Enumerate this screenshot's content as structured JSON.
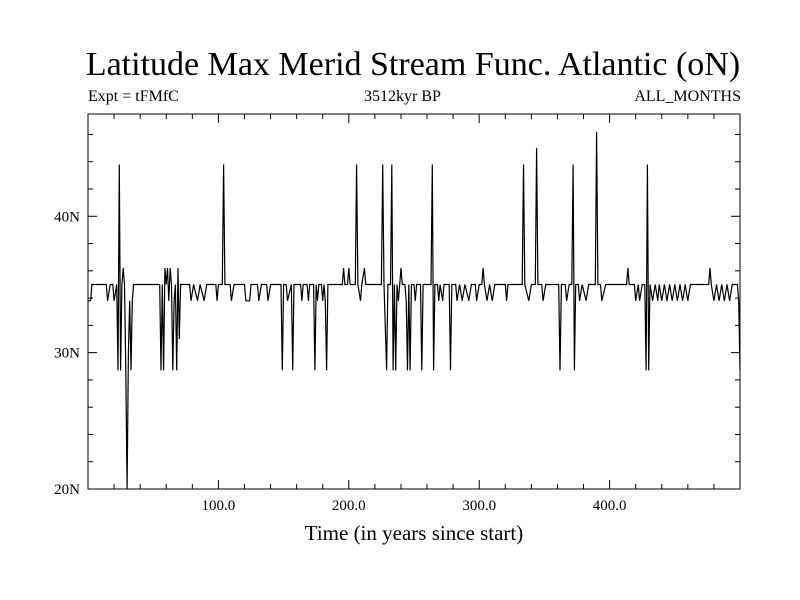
{
  "chart_data": {
    "type": "line",
    "title": "Latitude Max Merid Stream Func. Atlantic (oN)",
    "subtitle_left": "Expt = tFMfC",
    "subtitle_center": "3512kyr BP",
    "subtitle_right": "ALL_MONTHS",
    "xlabel": "Time (in years since start)",
    "ylabel": "",
    "xlim": [
      0,
      500
    ],
    "ylim": [
      20,
      47.5
    ],
    "x_ticks": [
      100,
      200,
      300,
      400
    ],
    "x_tick_labels": [
      "100.0",
      "200.0",
      "300.0",
      "400.0"
    ],
    "y_ticks": [
      20,
      30,
      40
    ],
    "y_tick_labels": [
      "20N",
      "30N",
      "40N"
    ],
    "grid": false,
    "legend": "none",
    "line_color": "#000000",
    "series": [
      {
        "values": [
          [
            0,
            33.8
          ],
          [
            2,
            33.8
          ],
          [
            3,
            35.0
          ],
          [
            14,
            35.0
          ],
          [
            15,
            33.8
          ],
          [
            17,
            35.0
          ],
          [
            19,
            35.0
          ],
          [
            20,
            33.8
          ],
          [
            22,
            35.0
          ],
          [
            23,
            28.7
          ],
          [
            24,
            43.8
          ],
          [
            25,
            28.7
          ],
          [
            26,
            35.0
          ],
          [
            27,
            36.2
          ],
          [
            28,
            35.0
          ],
          [
            29,
            28.7
          ],
          [
            30,
            20.0
          ],
          [
            31,
            30.0
          ],
          [
            32,
            33.8
          ],
          [
            33,
            28.7
          ],
          [
            34,
            33.8
          ],
          [
            35,
            35.0
          ],
          [
            55,
            35.0
          ],
          [
            56,
            28.7
          ],
          [
            57,
            35.0
          ],
          [
            58,
            28.7
          ],
          [
            59,
            36.2
          ],
          [
            60,
            35.0
          ],
          [
            61,
            36.2
          ],
          [
            62,
            33.8
          ],
          [
            63,
            36.2
          ],
          [
            64,
            35.0
          ],
          [
            65,
            28.7
          ],
          [
            66,
            33.8
          ],
          [
            67,
            35.0
          ],
          [
            68,
            28.7
          ],
          [
            69,
            36.2
          ],
          [
            70,
            31.0
          ],
          [
            71,
            35.0
          ],
          [
            78,
            35.0
          ],
          [
            79,
            33.8
          ],
          [
            81,
            35.0
          ],
          [
            84,
            33.8
          ],
          [
            86,
            35.0
          ],
          [
            89,
            33.8
          ],
          [
            91,
            35.0
          ],
          [
            98,
            35.0
          ],
          [
            99,
            33.8
          ],
          [
            100,
            35.0
          ],
          [
            103,
            35.0
          ],
          [
            104,
            43.8
          ],
          [
            105,
            35.0
          ],
          [
            109,
            35.0
          ],
          [
            110,
            33.8
          ],
          [
            112,
            35.0
          ],
          [
            120,
            35.0
          ],
          [
            121,
            33.8
          ],
          [
            124,
            33.8
          ],
          [
            125,
            35.0
          ],
          [
            130,
            35.0
          ],
          [
            131,
            33.8
          ],
          [
            133,
            35.0
          ],
          [
            137,
            35.0
          ],
          [
            138,
            33.8
          ],
          [
            140,
            35.0
          ],
          [
            148,
            35.0
          ],
          [
            149,
            28.7
          ],
          [
            150,
            35.0
          ],
          [
            152,
            35.0
          ],
          [
            153,
            33.8
          ],
          [
            156,
            35.0
          ],
          [
            157,
            28.7
          ],
          [
            158,
            35.0
          ],
          [
            163,
            35.0
          ],
          [
            164,
            33.8
          ],
          [
            165,
            35.0
          ],
          [
            168,
            35.0
          ],
          [
            169,
            33.8
          ],
          [
            170,
            35.0
          ],
          [
            173,
            35.0
          ],
          [
            174,
            28.7
          ],
          [
            175,
            35.0
          ],
          [
            176,
            33.8
          ],
          [
            177,
            35.0
          ],
          [
            179,
            35.0
          ],
          [
            180,
            33.8
          ],
          [
            181,
            35.0
          ],
          [
            182,
            33.8
          ],
          [
            183,
            28.7
          ],
          [
            184,
            35.0
          ],
          [
            195,
            35.0
          ],
          [
            196,
            36.2
          ],
          [
            197,
            35.0
          ],
          [
            199,
            35.0
          ],
          [
            200,
            36.2
          ],
          [
            201,
            35.0
          ],
          [
            205,
            35.0
          ],
          [
            206,
            43.8
          ],
          [
            207,
            35.0
          ],
          [
            209,
            33.8
          ],
          [
            210,
            35.0
          ],
          [
            212,
            36.2
          ],
          [
            213,
            35.0
          ],
          [
            225,
            35.0
          ],
          [
            226,
            43.8
          ],
          [
            227,
            35.0
          ],
          [
            229,
            28.7
          ],
          [
            230,
            35.0
          ],
          [
            232,
            35.0
          ],
          [
            233,
            43.8
          ],
          [
            234,
            28.7
          ],
          [
            235,
            35.0
          ],
          [
            236,
            28.7
          ],
          [
            237,
            35.0
          ],
          [
            238,
            33.8
          ],
          [
            239,
            35.0
          ],
          [
            240,
            36.2
          ],
          [
            241,
            35.0
          ],
          [
            243,
            35.0
          ],
          [
            244,
            33.8
          ],
          [
            245,
            28.7
          ],
          [
            246,
            35.0
          ],
          [
            247,
            28.7
          ],
          [
            248,
            35.0
          ],
          [
            250,
            35.0
          ],
          [
            251,
            33.8
          ],
          [
            252,
            35.0
          ],
          [
            255,
            35.0
          ],
          [
            256,
            28.7
          ],
          [
            257,
            35.0
          ],
          [
            263,
            35.0
          ],
          [
            264,
            43.8
          ],
          [
            265,
            28.7
          ],
          [
            266,
            35.0
          ],
          [
            268,
            35.0
          ],
          [
            269,
            33.8
          ],
          [
            270,
            35.0
          ],
          [
            272,
            33.8
          ],
          [
            273,
            35.0
          ],
          [
            277,
            35.0
          ],
          [
            278,
            28.7
          ],
          [
            279,
            35.0
          ],
          [
            282,
            35.0
          ],
          [
            283,
            33.8
          ],
          [
            285,
            35.0
          ],
          [
            287,
            33.8
          ],
          [
            289,
            35.0
          ],
          [
            292,
            33.8
          ],
          [
            294,
            35.0
          ],
          [
            297,
            35.0
          ],
          [
            298,
            33.8
          ],
          [
            300,
            35.0
          ],
          [
            302,
            35.0
          ],
          [
            303,
            36.2
          ],
          [
            304,
            35.0
          ],
          [
            306,
            33.8
          ],
          [
            308,
            35.0
          ],
          [
            310,
            33.8
          ],
          [
            312,
            35.0
          ],
          [
            320,
            35.0
          ],
          [
            321,
            33.8
          ],
          [
            322,
            35.0
          ],
          [
            333,
            35.0
          ],
          [
            334,
            43.8
          ],
          [
            335,
            35.0
          ],
          [
            338,
            33.8
          ],
          [
            340,
            35.0
          ],
          [
            343,
            35.0
          ],
          [
            344,
            45.0
          ],
          [
            345,
            35.0
          ],
          [
            348,
            35.0
          ],
          [
            349,
            33.8
          ],
          [
            351,
            35.0
          ],
          [
            361,
            35.0
          ],
          [
            362,
            28.7
          ],
          [
            363,
            35.0
          ],
          [
            366,
            35.0
          ],
          [
            367,
            33.8
          ],
          [
            369,
            35.0
          ],
          [
            371,
            35.0
          ],
          [
            372,
            43.8
          ],
          [
            373,
            28.7
          ],
          [
            374,
            35.0
          ],
          [
            376,
            35.0
          ],
          [
            377,
            33.8
          ],
          [
            379,
            35.0
          ],
          [
            382,
            33.8
          ],
          [
            384,
            35.0
          ],
          [
            389,
            35.0
          ],
          [
            390,
            46.2
          ],
          [
            391,
            35.0
          ],
          [
            393,
            35.0
          ],
          [
            394,
            33.8
          ],
          [
            397,
            35.0
          ],
          [
            413,
            35.0
          ],
          [
            414,
            36.2
          ],
          [
            415,
            35.0
          ],
          [
            419,
            35.0
          ],
          [
            420,
            33.8
          ],
          [
            422,
            35.0
          ],
          [
            423,
            33.8
          ],
          [
            425,
            35.0
          ],
          [
            427,
            35.0
          ],
          [
            428,
            28.7
          ],
          [
            429,
            43.8
          ],
          [
            430,
            28.7
          ],
          [
            431,
            35.0
          ],
          [
            433,
            33.8
          ],
          [
            435,
            35.0
          ],
          [
            437,
            33.8
          ],
          [
            438,
            35.0
          ],
          [
            440,
            33.8
          ],
          [
            442,
            35.0
          ],
          [
            444,
            33.8
          ],
          [
            446,
            35.0
          ],
          [
            448,
            33.8
          ],
          [
            450,
            35.0
          ],
          [
            452,
            33.8
          ],
          [
            454,
            35.0
          ],
          [
            456,
            33.8
          ],
          [
            458,
            35.0
          ],
          [
            460,
            33.8
          ],
          [
            462,
            35.0
          ],
          [
            476,
            35.0
          ],
          [
            477,
            36.2
          ],
          [
            478,
            35.0
          ],
          [
            480,
            33.8
          ],
          [
            482,
            35.0
          ],
          [
            484,
            33.8
          ],
          [
            486,
            35.0
          ],
          [
            488,
            33.8
          ],
          [
            490,
            35.0
          ],
          [
            492,
            33.8
          ],
          [
            494,
            35.0
          ],
          [
            498,
            35.0
          ],
          [
            499,
            33.8
          ],
          [
            500,
            28.7
          ]
        ]
      }
    ]
  }
}
